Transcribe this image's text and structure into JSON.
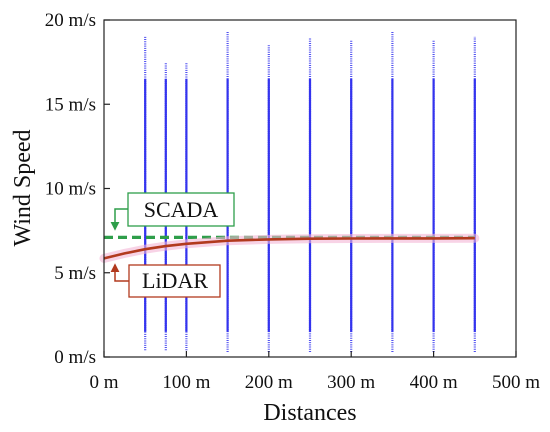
{
  "chart_data": {
    "type": "scatter",
    "xlabel": "Distances",
    "ylabel": "Wind Speed",
    "xlim": [
      0,
      500
    ],
    "ylim": [
      0,
      20
    ],
    "x_ticks": [
      0,
      100,
      200,
      300,
      400,
      500
    ],
    "x_tick_labels": [
      "0 m",
      "100 m",
      "200 m",
      "300 m",
      "400 m",
      "500 m"
    ],
    "y_ticks": [
      0,
      5,
      10,
      15,
      20
    ],
    "y_tick_labels": [
      "0 m/s",
      "5 m/s",
      "10 m/s",
      "15 m/s",
      "20 m/s"
    ],
    "grid": false,
    "scatter": {
      "color": "#3333ee",
      "distances": [
        50,
        75,
        100,
        150,
        200,
        250,
        300,
        350,
        400,
        450
      ],
      "min_speed": [
        0.4,
        0.4,
        0.4,
        0.3,
        0.3,
        0.3,
        0.3,
        0.3,
        0.3,
        0.3
      ],
      "max_speed": [
        19.0,
        17.5,
        17.5,
        19.3,
        18.5,
        18.9,
        18.8,
        19.3,
        18.8,
        19.0
      ]
    },
    "series": [
      {
        "name": "SCADA",
        "style": "dashed",
        "color": "#2e9e4a",
        "x": [
          0,
          450
        ],
        "y": [
          7.1,
          7.1
        ]
      },
      {
        "name": "LiDAR",
        "style": "solid",
        "color": "#b23a1e",
        "x": [
          0,
          25,
          50,
          75,
          100,
          150,
          200,
          250,
          300,
          350,
          400,
          450
        ],
        "y": [
          5.85,
          6.15,
          6.4,
          6.58,
          6.72,
          6.9,
          6.98,
          7.02,
          7.03,
          7.04,
          7.04,
          7.05
        ]
      }
    ],
    "annotations": [
      {
        "text": "SCADA",
        "color": "#2e9e4a",
        "points_to": [
          15,
          7.1
        ]
      },
      {
        "text": "LiDAR",
        "color": "#b23a1e",
        "points_to": [
          15,
          5.9
        ]
      }
    ]
  }
}
